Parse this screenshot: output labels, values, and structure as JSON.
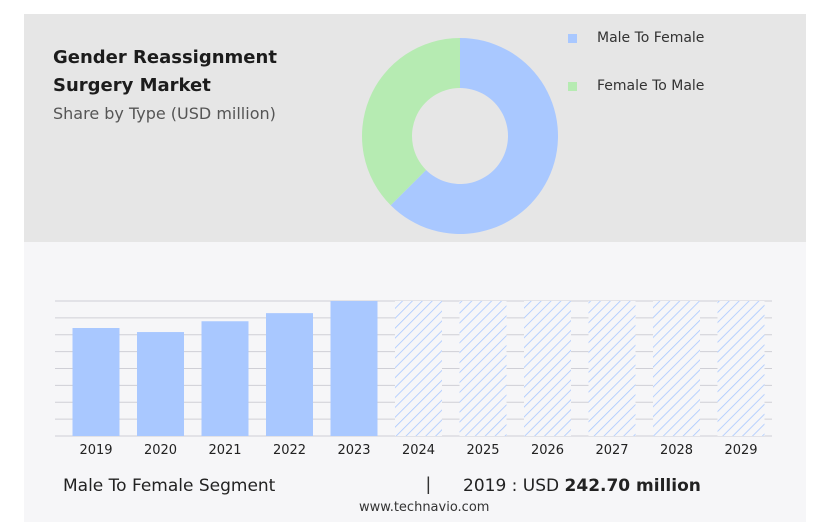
{
  "header": {
    "title": "Gender Reassignment Surgery Market",
    "subtitle": "Share by Type (USD million)"
  },
  "legend": [
    {
      "label": "Male To Female",
      "color": "#a9c8ff"
    },
    {
      "label": "Female To Male",
      "color": "#b6ebb2"
    }
  ],
  "chart_data": [
    {
      "type": "pie",
      "slices": [
        {
          "label": "Male To Female",
          "value": 62.5,
          "color": "#a9c8ff"
        },
        {
          "label": "Female To Male",
          "value": 37.5,
          "color": "#b6ebb2"
        }
      ]
    },
    {
      "type": "bar",
      "categories": [
        "2019",
        "2020",
        "2021",
        "2022",
        "2023",
        "2024",
        "2025",
        "2026",
        "2027",
        "2028",
        "2029"
      ],
      "values": [
        80,
        77,
        85,
        91,
        100,
        null,
        null,
        null,
        null,
        null,
        null
      ],
      "forecast_categories": [
        "2024",
        "2025",
        "2026",
        "2027",
        "2028",
        "2029"
      ],
      "forecast_values": [
        100,
        100,
        100,
        100,
        100,
        100
      ],
      "ylim": [
        0,
        100
      ],
      "grid": true,
      "bar_color": "#a9c8ff",
      "forecast_style": "hatched"
    }
  ],
  "footer": {
    "segment_label": "Male To Female Segment",
    "separator": "|",
    "year_prefix": "2019 : USD",
    "value": "242.70 million",
    "source": "www.technavio.com"
  }
}
